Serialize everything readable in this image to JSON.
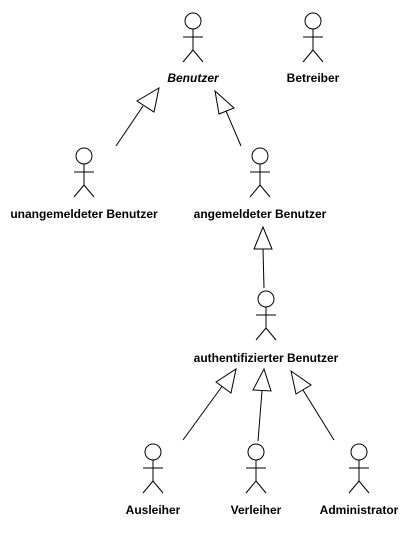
{
  "diagram": {
    "type": "use-case-actor-generalization",
    "actors": [
      {
        "id": "benutzer",
        "label": "Benutzer",
        "abstract": true
      },
      {
        "id": "betreiber",
        "label": "Betreiber",
        "abstract": false
      },
      {
        "id": "unangemeldet",
        "label": "unangemeldeter Benutzer",
        "abstract": false
      },
      {
        "id": "angemeldet",
        "label": "angemeldeter Benutzer",
        "abstract": false
      },
      {
        "id": "authentifiziert",
        "label": "authentifizierter Benutzer",
        "abstract": false
      },
      {
        "id": "ausleiher",
        "label": "Ausleiher",
        "abstract": false
      },
      {
        "id": "verleiher",
        "label": "Verleiher",
        "abstract": false
      },
      {
        "id": "administrator",
        "label": "Administrator",
        "abstract": false
      }
    ],
    "generalizations": [
      {
        "from": "unangemeldet",
        "to": "benutzer"
      },
      {
        "from": "angemeldet",
        "to": "benutzer"
      },
      {
        "from": "authentifiziert",
        "to": "angemeldet"
      },
      {
        "from": "ausleiher",
        "to": "authentifiziert"
      },
      {
        "from": "verleiher",
        "to": "authentifiziert"
      },
      {
        "from": "administrator",
        "to": "authentifiziert"
      }
    ]
  }
}
